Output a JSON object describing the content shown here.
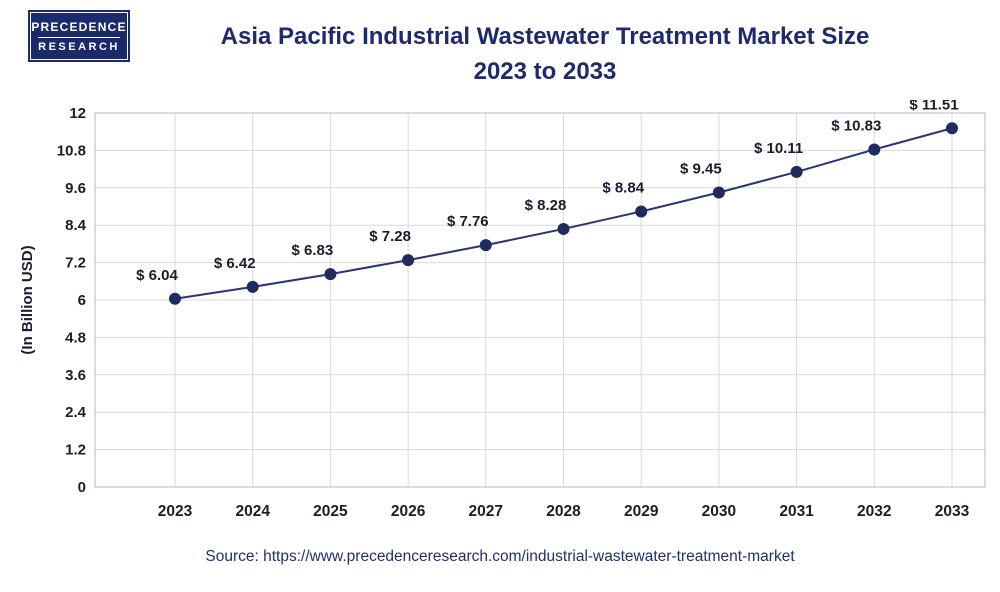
{
  "logo": {
    "line1": "PRECEDENCE",
    "line2": "RESEARCH"
  },
  "title": {
    "line1": "Asia Pacific Industrial Wastewater Treatment Market Size",
    "line2": "2023 to 2033"
  },
  "source": {
    "label": "Source:",
    "url": "https://www.precedenceresearch.com/industrial-wastewater-treatment-market"
  },
  "chart_data": {
    "type": "line",
    "categories": [
      "2023",
      "2024",
      "2025",
      "2026",
      "2027",
      "2028",
      "2029",
      "2030",
      "2031",
      "2032",
      "2033"
    ],
    "values": [
      6.04,
      6.42,
      6.83,
      7.28,
      7.76,
      8.28,
      8.84,
      9.45,
      10.11,
      10.83,
      11.51
    ],
    "point_labels": [
      "$ 6.04",
      "$ 6.42",
      "$ 6.83",
      "$ 7.28",
      "$ 7.76",
      "$ 8.28",
      "$ 8.84",
      "$ 9.45",
      "$ 10.11",
      "$ 10.83",
      "$ 11.51"
    ],
    "title": "Asia Pacific Industrial Wastewater Treatment Market Size 2023 to 2033",
    "xlabel": "",
    "ylabel": "(In Billion USD)",
    "ylim": [
      0,
      12
    ],
    "yticks": [
      0,
      1.2,
      2.4,
      3.6,
      4.8,
      6,
      7.2,
      8.4,
      9.6,
      10.8,
      12
    ],
    "grid": true,
    "legend": "none",
    "colors": {
      "line": "#2a3575",
      "marker": "#1f2a5e",
      "grid": "#d9d9d9",
      "border": "#c4c4c4",
      "tick_text": "#1a1d2e",
      "label_text": "#1a1d2e",
      "axis_title": "#1a1d2e"
    }
  }
}
